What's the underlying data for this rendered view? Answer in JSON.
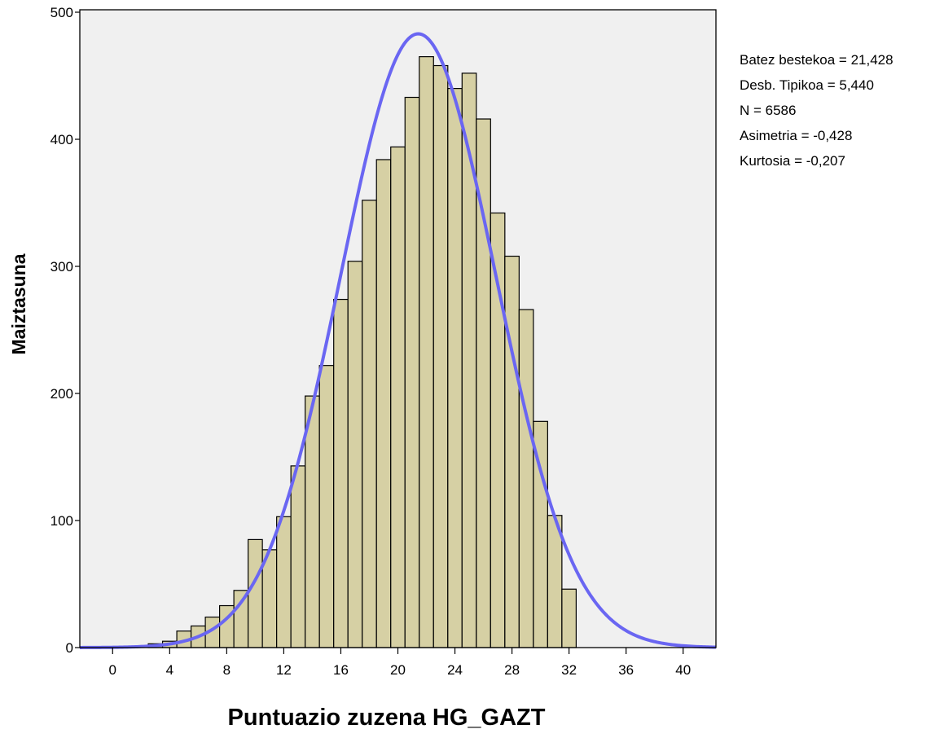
{
  "chart_data": {
    "type": "bar",
    "xlabel": "Puntuazio zuzena HG_GAZT",
    "ylabel": "Maiztasuna",
    "xlim": [
      -2.3,
      42.3
    ],
    "ylim": [
      0,
      500
    ],
    "x_ticks": [
      0,
      4,
      8,
      12,
      16,
      20,
      24,
      28,
      32,
      36,
      40
    ],
    "y_ticks": [
      0,
      100,
      200,
      300,
      400,
      500
    ],
    "bin_width": 1,
    "bins": [
      {
        "x": 3,
        "value": 3
      },
      {
        "x": 4,
        "value": 5
      },
      {
        "x": 5,
        "value": 13
      },
      {
        "x": 6,
        "value": 17
      },
      {
        "x": 7,
        "value": 24
      },
      {
        "x": 8,
        "value": 33
      },
      {
        "x": 9,
        "value": 45
      },
      {
        "x": 10,
        "value": 85
      },
      {
        "x": 11,
        "value": 77
      },
      {
        "x": 12,
        "value": 103
      },
      {
        "x": 13,
        "value": 143
      },
      {
        "x": 14,
        "value": 198
      },
      {
        "x": 15,
        "value": 222
      },
      {
        "x": 16,
        "value": 274
      },
      {
        "x": 17,
        "value": 304
      },
      {
        "x": 18,
        "value": 352
      },
      {
        "x": 19,
        "value": 384
      },
      {
        "x": 20,
        "value": 394
      },
      {
        "x": 21,
        "value": 433
      },
      {
        "x": 22,
        "value": 465
      },
      {
        "x": 23,
        "value": 458
      },
      {
        "x": 24,
        "value": 440
      },
      {
        "x": 25,
        "value": 452
      },
      {
        "x": 26,
        "value": 416
      },
      {
        "x": 27,
        "value": 342
      },
      {
        "x": 28,
        "value": 308
      },
      {
        "x": 29,
        "value": 266
      },
      {
        "x": 30,
        "value": 178
      },
      {
        "x": 31,
        "value": 104
      },
      {
        "x": 32,
        "value": 46
      }
    ],
    "normal_curve": {
      "mean": 21.428,
      "std": 5.44,
      "n": 6586,
      "bin_width": 1
    },
    "stats": [
      "Batez bestekoa = 21,428",
      "Desb. Tipikoa = 5,440",
      "N = 6586",
      "Asimetria = -0,428",
      "Kurtosia = -0,207"
    ],
    "legend_position": "right",
    "grid": false,
    "colors": {
      "plot_background": "#f0f0f0",
      "bar_fill": "#d6d0a4",
      "bar_stroke": "#000000",
      "curve": "#6a66f2"
    }
  }
}
